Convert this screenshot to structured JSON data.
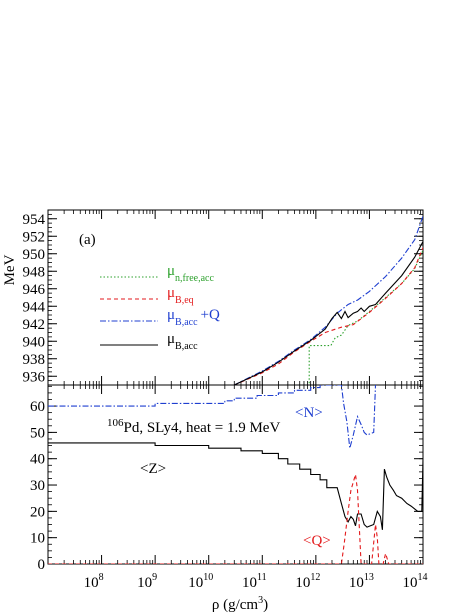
{
  "chart_data": [
    {
      "type": "line",
      "panel_label": "(a)",
      "ylabel": "MeV",
      "xscale": "log",
      "xlim": [
        10000000.0,
        100000000000000.0
      ],
      "ylim": [
        935,
        955
      ],
      "yticks": [
        936,
        938,
        940,
        942,
        944,
        946,
        948,
        950,
        952,
        954
      ],
      "legend_position": "top-left",
      "series": [
        {
          "name": "μ_{n,free,acc}",
          "label_main": "μ",
          "label_sub": "n,free,acc",
          "label_extra": "",
          "color": "#2ca02c",
          "style": "dotted",
          "points": [
            [
              600000000000.0,
              935
            ],
            [
              750000000000.0,
              935
            ],
            [
              750000000000.0,
              939.5
            ],
            [
              1900000000000.0,
              939.5
            ],
            [
              2300000000000.0,
              940.4
            ],
            [
              3000000000000.0,
              940.7
            ],
            [
              4000000000000.0,
              941.8
            ],
            [
              6000000000000.0,
              942.3
            ],
            [
              10000000000000.0,
              943.4
            ],
            [
              20000000000000.0,
              945
            ],
            [
              40000000000000.0,
              946.6
            ],
            [
              70000000000000.0,
              948.3
            ],
            [
              100000000000000.0,
              950.4
            ]
          ]
        },
        {
          "name": "μ_{B,eq}",
          "label_main": "μ",
          "label_sub": "B,eq",
          "label_extra": "",
          "color": "#e31a1c",
          "style": "dashed",
          "points": [
            [
              30000000000.0,
              935
            ],
            [
              100000000000.0,
              936.4
            ],
            [
              200000000000.0,
              937.4
            ],
            [
              400000000000.0,
              938.8
            ],
            [
              800000000000.0,
              940
            ],
            [
              1500000000000.0,
              941
            ],
            [
              3000000000000.0,
              941.6
            ],
            [
              5000000000000.0,
              941.9
            ],
            [
              10000000000000.0,
              943.3
            ],
            [
              20000000000000.0,
              944.9
            ],
            [
              40000000000000.0,
              946.6
            ],
            [
              70000000000000.0,
              948.4
            ],
            [
              100000000000000.0,
              950.7
            ]
          ]
        },
        {
          "name": "μ_{B,acc}+Q",
          "label_main": "μ",
          "label_sub": "B,acc",
          "label_extra": "+Q",
          "color": "#1f3fd0",
          "style": "dashdot",
          "points": [
            [
              30000000000.0,
              935
            ],
            [
              100000000000.0,
              936.6
            ],
            [
              200000000000.0,
              937.7
            ],
            [
              400000000000.0,
              939
            ],
            [
              800000000000.0,
              940.2
            ],
            [
              1500000000000.0,
              941.6
            ],
            [
              2500000000000.0,
              943.2
            ],
            [
              4000000000000.0,
              944.2
            ],
            [
              6000000000000.0,
              944.7
            ],
            [
              10000000000000.0,
              945.7
            ],
            [
              20000000000000.0,
              947.4
            ],
            [
              40000000000000.0,
              949.5
            ],
            [
              70000000000000.0,
              951.6
            ],
            [
              100000000000000.0,
              954.3
            ]
          ]
        },
        {
          "name": "μ_{B,acc}",
          "label_main": "μ",
          "label_sub": "B,acc",
          "label_extra": "",
          "color": "#000000",
          "style": "solid",
          "points": [
            [
              30000000000.0,
              935
            ],
            [
              100000000000.0,
              936.5
            ],
            [
              200000000000.0,
              937.6
            ],
            [
              400000000000.0,
              938.9
            ],
            [
              800000000000.0,
              940.1
            ],
            [
              1500000000000.0,
              941.4
            ],
            [
              2000000000000.0,
              942.6
            ],
            [
              2500000000000.0,
              943.3
            ],
            [
              3000000000000.0,
              942.6
            ],
            [
              3500000000000.0,
              943.4
            ],
            [
              4000000000000.0,
              942.7
            ],
            [
              5000000000000.0,
              943.2
            ],
            [
              6000000000000.0,
              943.4
            ],
            [
              7000000000000.0,
              943.8
            ],
            [
              8000000000000.0,
              943.4
            ],
            [
              10000000000000.0,
              944
            ],
            [
              13000000000000.0,
              944.2
            ],
            [
              20000000000000.0,
              945.5
            ],
            [
              40000000000000.0,
              947.5
            ],
            [
              70000000000000.0,
              949.6
            ],
            [
              100000000000000.0,
              951.4
            ]
          ]
        }
      ]
    },
    {
      "type": "line",
      "annotation": "106Pd, SLy4, heat = 1.9 MeV",
      "annotation_sup": "106",
      "annotation_rest": "Pd, SLy4, heat = 1.9 MeV",
      "xlabel": "ρ (g/cm³)",
      "xlabel_main": "ρ (g/cm",
      "xlabel_sup": "3",
      "xlabel_end": ")",
      "xscale": "log",
      "xlim": [
        10000000.0,
        100000000000000.0
      ],
      "ylim": [
        0,
        68
      ],
      "yticks": [
        0,
        10,
        20,
        30,
        40,
        50,
        60
      ],
      "xtick_exponents": [
        "8",
        "9",
        "10",
        "11",
        "12",
        "13",
        "14"
      ],
      "xtick_base": "10",
      "series": [
        {
          "name": "<N>",
          "color": "#1f3fd0",
          "style": "dashdot",
          "points": [
            [
              10000000.0,
              60
            ],
            [
              1000000000.0,
              60
            ],
            [
              1000000000.0,
              61
            ],
            [
              20000000000.0,
              61
            ],
            [
              20000000000.0,
              62
            ],
            [
              30000000000.0,
              62
            ],
            [
              30000000000.0,
              63
            ],
            [
              80000000000.0,
              63
            ],
            [
              80000000000.0,
              64
            ],
            [
              200000000000.0,
              64
            ],
            [
              200000000000.0,
              65
            ],
            [
              400000000000.0,
              65
            ],
            [
              400000000000.0,
              66
            ],
            [
              800000000000.0,
              66
            ],
            [
              800000000000.0,
              67
            ],
            [
              1200000000000.0,
              67
            ],
            [
              1200000000000.0,
              68
            ],
            [
              3000000000000.0,
              68
            ],
            [
              3300000000000.0,
              61
            ],
            [
              3800000000000.0,
              54
            ],
            [
              4300000000000.0,
              44
            ],
            [
              5000000000000.0,
              49
            ],
            [
              6000000000000.0,
              56
            ],
            [
              7000000000000.0,
              53
            ],
            [
              8000000000000.0,
              50
            ],
            [
              9000000000000.0,
              49
            ],
            [
              12000000000000.0,
              50
            ],
            [
              13000000000000.0,
              68
            ]
          ]
        },
        {
          "name": "<Z>",
          "color": "#000000",
          "style": "solid",
          "points": [
            [
              10000000.0,
              46
            ],
            [
              1000000000.0,
              46
            ],
            [
              1000000000.0,
              45
            ],
            [
              10000000000.0,
              45
            ],
            [
              10000000000.0,
              44
            ],
            [
              40000000000.0,
              44
            ],
            [
              40000000000.0,
              43
            ],
            [
              100000000000.0,
              43
            ],
            [
              100000000000.0,
              42
            ],
            [
              200000000000.0,
              42
            ],
            [
              200000000000.0,
              40
            ],
            [
              300000000000.0,
              40
            ],
            [
              300000000000.0,
              38
            ],
            [
              500000000000.0,
              38
            ],
            [
              500000000000.0,
              36
            ],
            [
              800000000000.0,
              36
            ],
            [
              800000000000.0,
              34
            ],
            [
              1200000000000.0,
              34
            ],
            [
              1200000000000.0,
              32
            ],
            [
              1600000000000.0,
              32
            ],
            [
              1600000000000.0,
              29
            ],
            [
              2500000000000.0,
              29
            ],
            [
              3000000000000.0,
              23
            ],
            [
              3500000000000.0,
              18
            ],
            [
              4000000000000.0,
              16
            ],
            [
              4500000000000.0,
              18
            ],
            [
              5000000000000.0,
              17
            ],
            [
              5500000000000.0,
              14.5
            ],
            [
              6000000000000.0,
              19
            ],
            [
              7000000000000.0,
              19
            ],
            [
              8000000000000.0,
              15
            ],
            [
              9000000000000.0,
              14
            ],
            [
              12000000000000.0,
              15
            ],
            [
              14000000000000.0,
              20
            ],
            [
              16000000000000.0,
              18
            ],
            [
              17500000000000.0,
              13
            ],
            [
              19000000000000.0,
              36
            ],
            [
              21000000000000.0,
              33
            ],
            [
              24000000000000.0,
              30
            ],
            [
              28000000000000.0,
              28
            ],
            [
              32000000000000.0,
              26
            ],
            [
              40000000000000.0,
              25
            ],
            [
              50000000000000.0,
              23
            ],
            [
              60000000000000.0,
              22
            ],
            [
              80000000000000.0,
              20
            ],
            [
              95000000000000.0,
              20
            ],
            [
              100000000000000.0,
              40
            ]
          ]
        },
        {
          "name": "<Q>",
          "color": "#e31a1c",
          "style": "dashed",
          "points": [
            [
              10000000.0,
              0
            ],
            [
              3000000000000.0,
              0
            ],
            [
              3400000000000.0,
              8
            ],
            [
              4000000000000.0,
              20
            ],
            [
              4500000000000.0,
              28
            ],
            [
              5500000000000.0,
              34
            ],
            [
              6000000000000.0,
              28
            ],
            [
              7000000000000.0,
              0
            ],
            [
              11000000000000.0,
              0
            ],
            [
              13000000000000.0,
              15
            ],
            [
              14000000000000.0,
              10
            ],
            [
              15000000000000.0,
              0
            ],
            [
              18000000000000.0,
              0
            ],
            [
              20000000000000.0,
              4
            ],
            [
              23000000000000.0,
              0
            ],
            [
              100000000000000.0,
              0
            ]
          ]
        }
      ],
      "labels": {
        "n": "<N>",
        "z": "<Z>",
        "q": "<Q>"
      }
    }
  ]
}
